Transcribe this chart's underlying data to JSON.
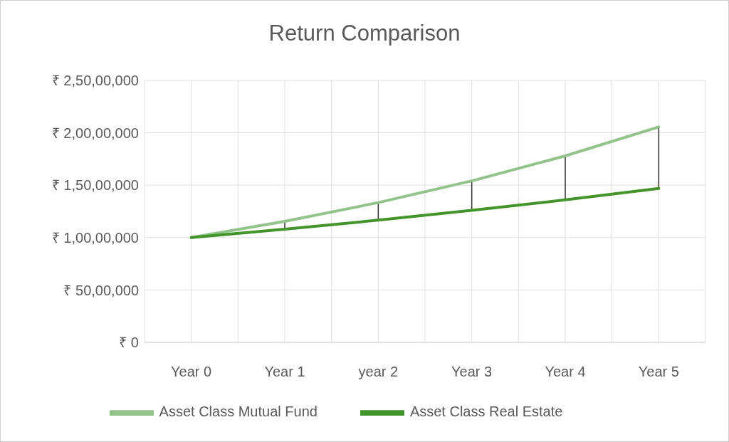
{
  "chart_data": {
    "type": "line",
    "title": "Return Comparison",
    "categories": [
      "Year 0",
      "Year 1",
      "year 2",
      "Year 3",
      "Year 4",
      "Year 5"
    ],
    "series": [
      {
        "name": "Asset Class Mutual Fund",
        "color": "#92c38a",
        "values": [
          10000000,
          11550000,
          13340000,
          15410000,
          17800000,
          20560000
        ]
      },
      {
        "name": "Asset Class Real Estate",
        "color": "#43952b",
        "values": [
          10000000,
          10800000,
          11660000,
          12600000,
          13600000,
          14690000
        ]
      }
    ],
    "ylim": [
      0,
      25000000
    ],
    "yticks": [
      {
        "value": 0,
        "label": "₹ 0"
      },
      {
        "value": 5000000,
        "label": "₹ 50,00,000"
      },
      {
        "value": 10000000,
        "label": "₹ 1,00,00,000"
      },
      {
        "value": 15000000,
        "label": "₹ 1,50,00,000"
      },
      {
        "value": 20000000,
        "label": "₹ 2,00,00,000"
      },
      {
        "value": 25000000,
        "label": "₹ 2,50,00,000"
      }
    ],
    "grid": true,
    "legend": "bottom",
    "marker": "none",
    "line_style": "solid"
  }
}
